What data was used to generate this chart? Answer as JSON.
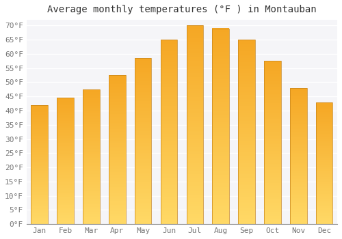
{
  "title": "Average monthly temperatures (°F ) in Montauban",
  "months": [
    "Jan",
    "Feb",
    "Mar",
    "Apr",
    "May",
    "Jun",
    "Jul",
    "Aug",
    "Sep",
    "Oct",
    "Nov",
    "Dec"
  ],
  "values": [
    42,
    44.5,
    47.5,
    52.5,
    58.5,
    65,
    70,
    69,
    65,
    57.5,
    48,
    43
  ],
  "ylim": [
    0,
    72
  ],
  "yticks": [
    0,
    5,
    10,
    15,
    20,
    25,
    30,
    35,
    40,
    45,
    50,
    55,
    60,
    65,
    70
  ],
  "background_color": "#ffffff",
  "plot_bg_color": "#f5f5f8",
  "grid_color": "#ffffff",
  "bar_color_top": "#F5A623",
  "bar_color_bottom": "#FFD966",
  "bar_edge_color": "#c8851a",
  "title_fontsize": 10,
  "tick_fontsize": 8,
  "tick_color": "#777777",
  "font_family": "monospace",
  "bar_width": 0.65
}
